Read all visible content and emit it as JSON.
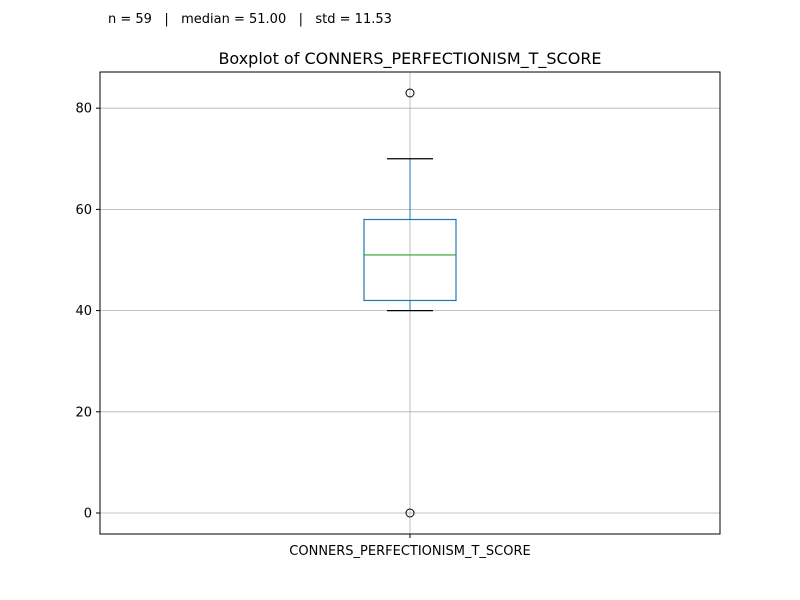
{
  "stats_line": "n = 59   |   median = 51.00   |   std = 11.53",
  "chart_data": {
    "type": "box",
    "title": "Boxplot of CONNERS_PERFECTIONISM_T_SCORE",
    "categories": [
      "CONNERS_PERFECTIONISM_T_SCORE"
    ],
    "xlabel": "",
    "ylabel": "",
    "ylim": [
      -4.15,
      87.15
    ],
    "yticks": [
      0,
      20,
      40,
      60,
      80
    ],
    "grid": true,
    "legend": "none",
    "box": {
      "q1": 42,
      "median": 51,
      "q3": 58,
      "whisker_low": 40,
      "whisker_high": 70,
      "outliers": [
        0,
        83
      ]
    },
    "summary": {
      "n": 59,
      "median": 51.0,
      "std": 11.53
    },
    "colors": {
      "box": "#1f77b4",
      "median": "#2ca02c",
      "whisker_cap": "#000000",
      "grid": "#b0b0b0",
      "outlier_edge": "#000000"
    }
  }
}
